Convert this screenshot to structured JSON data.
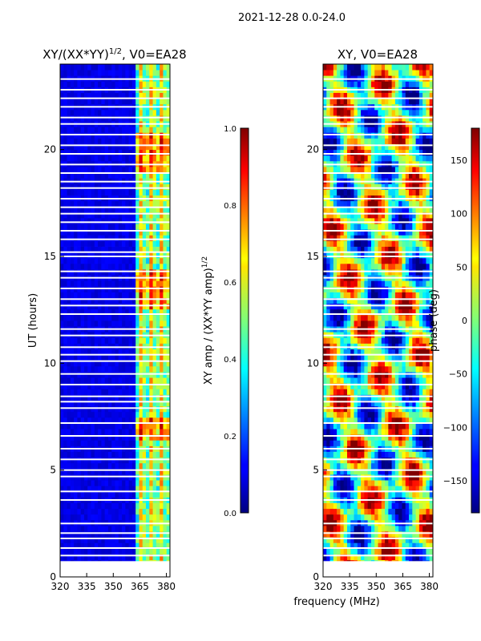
{
  "figure": {
    "suptitle": "2021-12-28 0.0-24.0",
    "shared_xlabel": "frequency (MHz)"
  },
  "chart_data": [
    {
      "type": "heatmap",
      "title": "XY/(XX*YY)",
      "title_sup": "1/2",
      "title_tail": ", V0=EA28",
      "ylabel": "UT (hours)",
      "xlim": [
        320,
        382
      ],
      "ylim": [
        0,
        24
      ],
      "xticks": [
        "320",
        "335",
        "350",
        "365",
        "380"
      ],
      "yticks": [
        "0",
        "5",
        "10",
        "15",
        "20"
      ],
      "colorbar": {
        "label": "XY amp / (XX*YY amp)",
        "label_sup": "1/2",
        "range": [
          0.0,
          1.0
        ],
        "ticks": [
          "0.0",
          "0.2",
          "0.4",
          "0.6",
          "0.8",
          "1.0"
        ],
        "colormap": "jet"
      },
      "flagged_ut_gaps": [
        0.7,
        1.0,
        1.35,
        1.8,
        2.05,
        2.5,
        3.6,
        4.0,
        4.7,
        5.0,
        5.5,
        6.0,
        6.6,
        7.2,
        7.9,
        8.2,
        8.45,
        9.0,
        9.5,
        10.1,
        10.4,
        10.75,
        11.3,
        11.6,
        12.3,
        12.7,
        13.0,
        13.5,
        14.0,
        14.3,
        15.0,
        15.2,
        15.8,
        16.2,
        16.6,
        17.0,
        17.3,
        17.7,
        18.2,
        18.5,
        18.9,
        19.3,
        19.8,
        20.2,
        20.7,
        21.2,
        21.5,
        22.0,
        22.4,
        22.8,
        23.3
      ],
      "bright_band_mhz": [
        363,
        382
      ]
    },
    {
      "type": "heatmap",
      "title": "XY, V0=EA28",
      "ylabel": "",
      "xlim": [
        320,
        382
      ],
      "ylim": [
        0,
        24
      ],
      "xticks": [
        "320",
        "335",
        "350",
        "365",
        "380"
      ],
      "yticks": [
        "0",
        "5",
        "10",
        "15",
        "20"
      ],
      "colorbar": {
        "label": "phase (deg)",
        "range": [
          -180,
          180
        ],
        "ticks": [
          "−150",
          "−100",
          "−50",
          "0",
          "50",
          "100",
          "150"
        ],
        "tick_values": [
          -150,
          -100,
          -50,
          0,
          50,
          100,
          150
        ],
        "colormap": "jet"
      },
      "flagged_ut_gaps": [
        0.7,
        1.0,
        1.35,
        1.8,
        2.05,
        2.5,
        3.6,
        4.0,
        4.7,
        5.0,
        5.5,
        6.0,
        6.6,
        7.2,
        7.9,
        8.2,
        8.45,
        9.0,
        9.5,
        10.1,
        10.4,
        10.75,
        11.3,
        11.6,
        12.3,
        12.7,
        13.0,
        13.5,
        14.0,
        14.3,
        15.0,
        15.2,
        15.8,
        16.2,
        16.6,
        17.0,
        17.3,
        17.7,
        18.2,
        18.5,
        18.9,
        19.3,
        19.8,
        20.2,
        20.7,
        21.2,
        21.5,
        22.0,
        22.4,
        22.8,
        23.3
      ]
    }
  ]
}
